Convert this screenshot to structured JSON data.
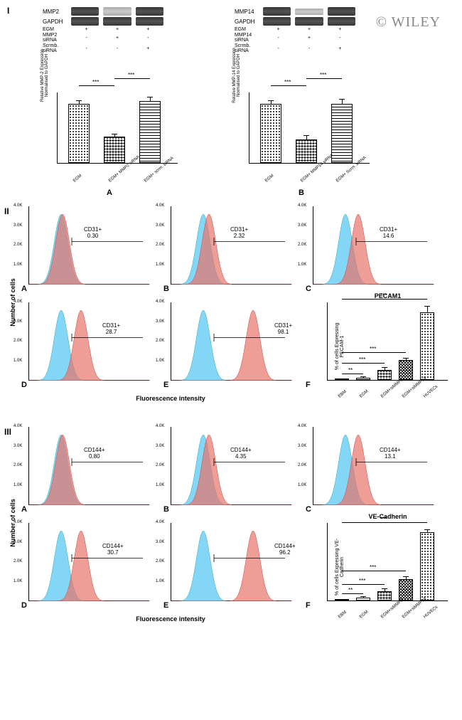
{
  "watermark": "© WILEY",
  "section_I": "I",
  "section_II": "II",
  "section_III": "III",
  "panelI_A": {
    "protein": "MMP2",
    "loading": "GAPDH",
    "treatments": [
      "EGM",
      "MMP2 siRNA",
      "Scrmb. siRNA"
    ],
    "treat_rows": [
      {
        "label": "EGM",
        "vals": [
          "+",
          "+",
          "+"
        ]
      },
      {
        "label": "MMP2 siRNA",
        "vals": [
          "-",
          "+",
          "-"
        ]
      },
      {
        "label": "Scrmb. siRNA",
        "vals": [
          "-",
          "-",
          "+"
        ]
      }
    ],
    "bars": {
      "cats": [
        "EGM",
        "EGM+ MMP2 siRNA",
        "EGM+ scrm. siRNA"
      ],
      "vals": [
        1.0,
        0.45,
        1.05
      ],
      "err": [
        0.05,
        0.03,
        0.05
      ],
      "ylabel": "Relative MMP-2 Expression Normalised to GAPDH",
      "ylim": 1.2,
      "fills": [
        "dots",
        "crosshatch",
        "hlines"
      ],
      "sig": [
        [
          "***",
          0,
          1
        ],
        [
          "***",
          1,
          2
        ]
      ]
    }
  },
  "panelI_B": {
    "protein": "MMP14",
    "loading": "GAPDH",
    "treat_rows": [
      {
        "label": "EGM",
        "vals": [
          "+",
          "+",
          "+"
        ]
      },
      {
        "label": "MMP14 siRNA",
        "vals": [
          "-",
          "+",
          "-"
        ]
      },
      {
        "label": "Scrmb. siRNA",
        "vals": [
          "-",
          "-",
          "+"
        ]
      }
    ],
    "bars": {
      "cats": [
        "EGM",
        "EGM+ MMP14 siRNA",
        "EGM+ Scrm. siRNA"
      ],
      "vals": [
        1.0,
        0.4,
        1.0
      ],
      "err": [
        0.05,
        0.06,
        0.07
      ],
      "ylabel": "Relative MMP-14 Expression Normalised to GAPDH",
      "ylim": 1.2,
      "fills": [
        "dots",
        "crosshatch",
        "hlines"
      ],
      "sig": [
        [
          "***",
          0,
          1
        ],
        [
          "***",
          1,
          2
        ]
      ]
    }
  },
  "panelII": {
    "marker": "CD31+",
    "letters": [
      "A",
      "B",
      "C",
      "D",
      "E",
      "F"
    ],
    "vals": [
      "0.30",
      "2.32",
      "14.6",
      "28.7",
      "98.1"
    ],
    "yaxis": "Number of cells",
    "xaxis": "Fluorescence intensity",
    "barF": {
      "title": "PECAM1",
      "ylabel": "% of cells Expressing PECAM-1",
      "cats": [
        "EBM",
        "EGM",
        "EGM+siMMP2",
        "EGM+siMMP14",
        "HUVECs"
      ],
      "vals": [
        1,
        3,
        14,
        28,
        95
      ],
      "err": [
        0.5,
        1,
        3,
        2,
        8
      ],
      "fills": [
        "dense-dots",
        "hlines",
        "crosshatch",
        "dark-cross",
        "dots"
      ],
      "sig": [
        [
          "**",
          0,
          1
        ],
        [
          "***",
          0,
          2
        ],
        [
          "***",
          0,
          3
        ],
        [
          "***",
          0,
          4
        ]
      ]
    }
  },
  "panelIII": {
    "marker": "CD144+",
    "letters": [
      "A",
      "B",
      "C",
      "D",
      "E",
      "F"
    ],
    "vals": [
      "0.80",
      "4.35",
      "13.1",
      "30.7",
      "96.2"
    ],
    "yaxis": "Number of cells",
    "xaxis": "Fluorescence intensity",
    "barF": {
      "title": "VE-Cadherin",
      "ylabel": "% of cells Expressing VE-Cadherin",
      "cats": [
        "EBM",
        "EGM",
        "EGM+siMMP2",
        "EGM+siMMP14",
        "HUVECs"
      ],
      "vals": [
        1,
        4,
        13,
        30,
        96
      ],
      "err": [
        0.5,
        1,
        3,
        3,
        3
      ],
      "fills": [
        "dense-dots",
        "hlines",
        "crosshatch",
        "dark-cross",
        "dots"
      ],
      "sig": [
        [
          "**",
          0,
          1
        ],
        [
          "***",
          0,
          2
        ],
        [
          "***",
          0,
          3
        ],
        [
          "***",
          0,
          4
        ]
      ]
    }
  },
  "colors": {
    "cyan": "#6ecff6",
    "red": "#e8736b",
    "overlay": "#9a8aa0"
  },
  "yticks_histo": [
    "1.0K",
    "2.0K",
    "3.0K",
    "4.0K"
  ]
}
